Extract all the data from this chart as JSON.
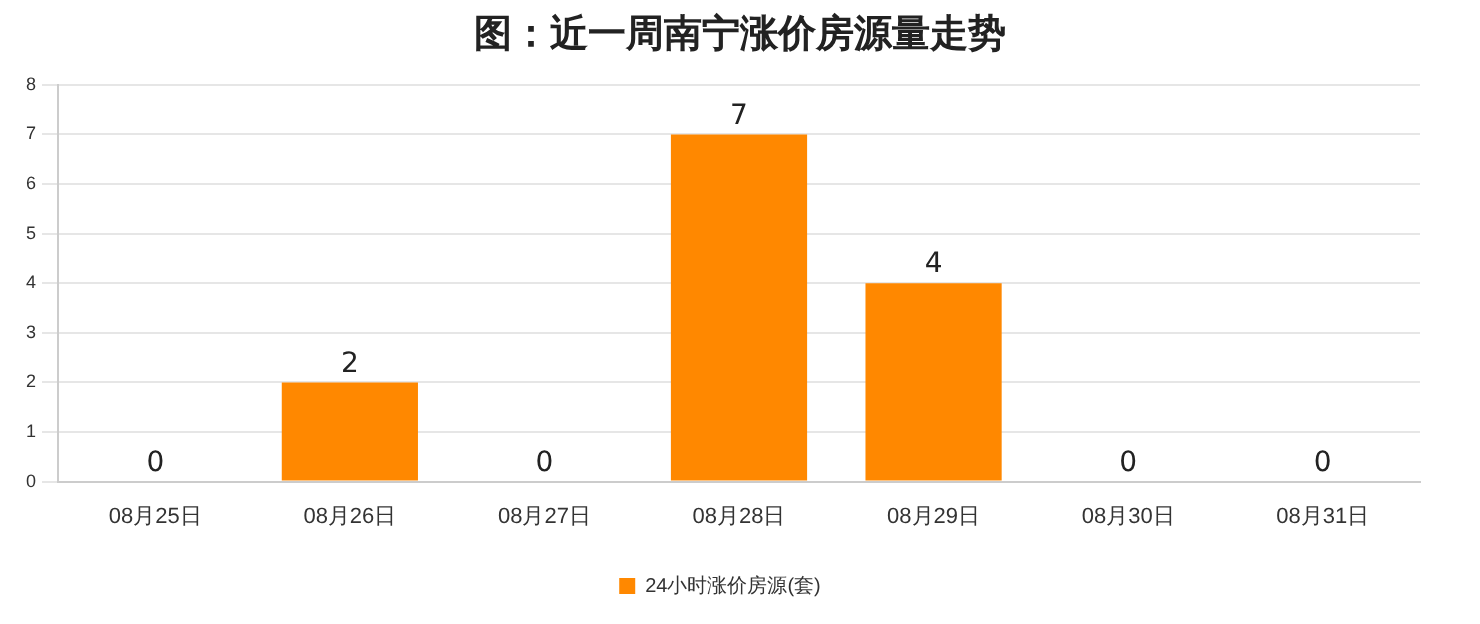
{
  "chart_data": {
    "type": "bar",
    "title": "图：近一周南宁涨价房源量走势",
    "categories": [
      "08月25日",
      "08月26日",
      "08月27日",
      "08月28日",
      "08月29日",
      "08月30日",
      "08月31日"
    ],
    "series": [
      {
        "name": "24小时涨价房源(套)",
        "color": "#ff8800",
        "values": [
          0,
          2,
          0,
          7,
          4,
          0,
          0
        ]
      }
    ],
    "ylim": [
      0,
      8
    ],
    "yticks": [
      0,
      1,
      2,
      3,
      4,
      5,
      6,
      7,
      8
    ],
    "grid": "y",
    "legend": "bottom",
    "data_labels": true
  }
}
